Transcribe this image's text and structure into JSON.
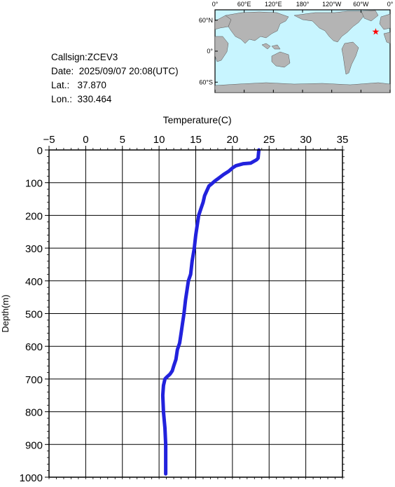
{
  "info": {
    "callsign": "Callsign:ZCEV3",
    "date_label": "Date:",
    "date_value": "2025/09/07 20:08(UTC)",
    "lat_label": "Lat.:",
    "lat_value": "37.870",
    "lon_label": "Lon.:",
    "lon_value": "330.464"
  },
  "map": {
    "lon_ticks": [
      "0°",
      "60°E",
      "120°E",
      "180°",
      "120°W",
      "60°W",
      "0°"
    ],
    "lat_ticks": [
      "60°N",
      "0°",
      "60°S"
    ],
    "ocean_color": "#c8f5ff",
    "land_color": "#b4b4b4",
    "marker": {
      "lon": 330.464,
      "lat": 37.87,
      "color": "#ff0000",
      "icon": "star-icon"
    }
  },
  "chart_data": {
    "type": "line",
    "xlabel": "Temperature(C)",
    "ylabel": "Depth(m)",
    "xlim": [
      -5,
      35
    ],
    "ylim": [
      1000,
      0
    ],
    "x_ticks": [
      "-5",
      "0",
      "5",
      "10",
      "15",
      "20",
      "25",
      "30",
      "35"
    ],
    "y_ticks": [
      "0",
      "100",
      "200",
      "300",
      "400",
      "500",
      "600",
      "700",
      "800",
      "900",
      "1000"
    ],
    "grid": true,
    "line_color": "#2222dd",
    "series": [
      {
        "x": [
          23.6,
          23.5,
          23.3,
          22.5,
          21.5,
          20.5,
          20.0,
          19.5,
          18.8,
          18.2,
          17.6,
          17.1,
          16.8,
          16.5,
          16.2,
          16.0,
          15.7,
          15.4,
          15.2,
          15.0,
          14.8,
          14.5,
          14.3,
          14.0,
          13.8,
          13.6,
          13.4,
          13.2,
          13.0,
          12.8,
          12.5,
          12.3,
          12.0,
          11.8,
          11.5,
          11.0,
          10.8,
          10.6,
          10.5,
          10.6,
          10.8,
          10.9,
          10.9
        ],
        "y": [
          0,
          25,
          30,
          40,
          42,
          48,
          55,
          65,
          75,
          85,
          95,
          105,
          110,
          125,
          140,
          160,
          180,
          200,
          230,
          260,
          300,
          340,
          380,
          400,
          430,
          460,
          500,
          530,
          560,
          590,
          610,
          640,
          660,
          675,
          685,
          695,
          700,
          720,
          750,
          800,
          850,
          900,
          990
        ]
      }
    ]
  }
}
